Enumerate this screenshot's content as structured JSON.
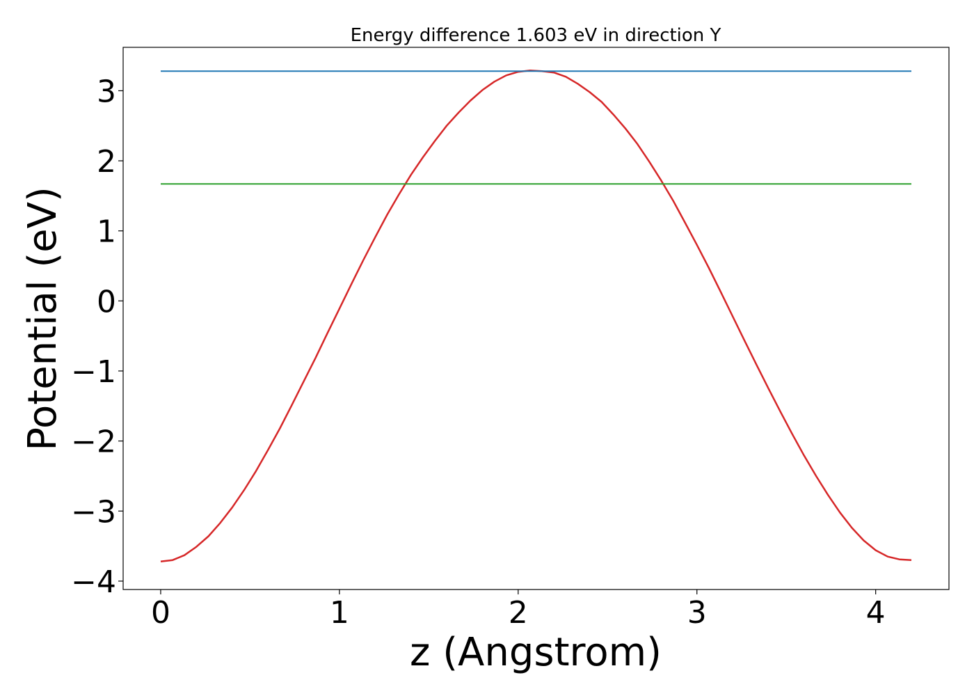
{
  "chart_data": {
    "type": "line",
    "title": "Energy difference 1.603 eV in direction Y",
    "xlabel": "z (Angstrom)",
    "ylabel": "Potential (eV)",
    "xlim": [
      -0.21,
      4.41
    ],
    "ylim": [
      -4.12,
      3.62
    ],
    "xticks": [
      0,
      1,
      2,
      3,
      4
    ],
    "xtick_labels": [
      "0",
      "1",
      "2",
      "3",
      "4"
    ],
    "yticks": [
      -4,
      -3,
      -2,
      -1,
      0,
      1,
      2,
      3
    ],
    "ytick_labels": [
      "−4",
      "−3",
      "−2",
      "−1",
      "0",
      "1",
      "2",
      "3"
    ],
    "grid": false,
    "legend": "none",
    "series": [
      {
        "color": "#d62728",
        "kind": "curve",
        "x": [
          0.0,
          0.067,
          0.133,
          0.2,
          0.267,
          0.333,
          0.4,
          0.467,
          0.533,
          0.6,
          0.667,
          0.733,
          0.8,
          0.867,
          0.933,
          1.0,
          1.067,
          1.133,
          1.2,
          1.267,
          1.333,
          1.4,
          1.467,
          1.533,
          1.6,
          1.667,
          1.733,
          1.8,
          1.867,
          1.933,
          2.0,
          2.067,
          2.133,
          2.2,
          2.267,
          2.333,
          2.4,
          2.467,
          2.533,
          2.6,
          2.667,
          2.733,
          2.8,
          2.867,
          2.933,
          3.0,
          3.067,
          3.133,
          3.2,
          3.267,
          3.333,
          3.4,
          3.467,
          3.533,
          3.6,
          3.667,
          3.733,
          3.8,
          3.867,
          3.933,
          4.0,
          4.067,
          4.133,
          4.2
        ],
        "y": [
          -3.72,
          -3.7,
          -3.63,
          -3.51,
          -3.36,
          -3.17,
          -2.95,
          -2.7,
          -2.43,
          -2.13,
          -1.82,
          -1.49,
          -1.15,
          -0.81,
          -0.46,
          -0.11,
          0.24,
          0.58,
          0.91,
          1.23,
          1.52,
          1.8,
          2.05,
          2.28,
          2.5,
          2.69,
          2.86,
          3.01,
          3.13,
          3.22,
          3.27,
          3.29,
          3.28,
          3.26,
          3.2,
          3.1,
          2.98,
          2.84,
          2.66,
          2.46,
          2.24,
          1.99,
          1.72,
          1.43,
          1.12,
          0.8,
          0.47,
          0.13,
          -0.22,
          -0.57,
          -0.91,
          -1.25,
          -1.58,
          -1.9,
          -2.21,
          -2.5,
          -2.77,
          -3.02,
          -3.24,
          -3.42,
          -3.56,
          -3.65,
          -3.69,
          -3.7
        ]
      },
      {
        "color": "#1f77b4",
        "kind": "hline",
        "x": [
          0.0,
          4.2
        ],
        "y": [
          3.28,
          3.28
        ]
      },
      {
        "color": "#2ca02c",
        "kind": "hline",
        "x": [
          0.0,
          4.2
        ],
        "y": [
          1.67,
          1.67
        ]
      }
    ]
  }
}
